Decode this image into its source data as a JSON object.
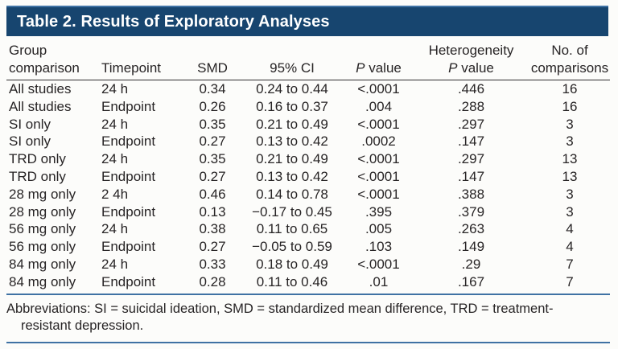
{
  "title": "Table 2. Results of Exploratory Analyses",
  "columns": [
    {
      "lines": [
        "Group",
        "comparison"
      ],
      "align": "left"
    },
    {
      "lines": [
        "Timepoint"
      ],
      "align": "left"
    },
    {
      "lines": [
        "SMD"
      ],
      "align": "center"
    },
    {
      "lines": [
        "95% CI"
      ],
      "align": "center"
    },
    {
      "lines": [
        "P value"
      ],
      "align": "center"
    },
    {
      "lines": [
        "Heterogeneity",
        "P value"
      ],
      "align": "center"
    },
    {
      "lines": [
        "No. of",
        "comparisons"
      ],
      "align": "center"
    }
  ],
  "rows": [
    [
      "All studies",
      "24 h",
      "0.34",
      "0.24 to 0.44",
      "<.0001",
      ".446",
      "16"
    ],
    [
      "All studies",
      "Endpoint",
      "0.26",
      "0.16 to 0.37",
      ".004",
      ".288",
      "16"
    ],
    [
      "SI only",
      "24 h",
      "0.35",
      "0.21 to 0.49",
      "<.0001",
      ".297",
      "3"
    ],
    [
      "SI only",
      "Endpoint",
      "0.27",
      "0.13 to 0.42",
      ".0002",
      ".147",
      "3"
    ],
    [
      "TRD only",
      "24 h",
      "0.35",
      "0.21 to 0.49",
      "<.0001",
      ".297",
      "13"
    ],
    [
      "TRD only",
      "Endpoint",
      "0.27",
      "0.13 to 0.42",
      "<.0001",
      ".147",
      "13"
    ],
    [
      "28 mg only",
      "2 4h",
      "0.46",
      "0.14 to 0.78",
      "<.0001",
      ".388",
      "3"
    ],
    [
      "28 mg only",
      "Endpoint",
      "0.13",
      "−0.17 to 0.45",
      ".395",
      ".379",
      "3"
    ],
    [
      "56 mg only",
      "24 h",
      "0.38",
      "0.11 to 0.65",
      ".005",
      ".263",
      "4"
    ],
    [
      "56 mg only",
      "Endpoint",
      "0.27",
      "−0.05 to 0.59",
      ".103",
      ".149",
      "4"
    ],
    [
      "84 mg only",
      "24 h",
      "0.33",
      "0.18 to 0.49",
      "<.0001",
      ".29",
      "7"
    ],
    [
      "84 mg only",
      "Endpoint",
      "0.28",
      "0.11 to 0.46",
      ".01",
      ".167",
      "7"
    ]
  ],
  "footnote_lines": [
    "Abbreviations: SI = suicidal ideation, SMD = standardized mean difference, TRD = treatment-",
    "resistant depression."
  ],
  "colors": {
    "header_bar": "#17456f",
    "rule_blue": "#3f72a4",
    "rule_dark": "#2f2d2e",
    "text": "#272425",
    "title_text": "#ffffff",
    "background": "#fcfcfa"
  }
}
